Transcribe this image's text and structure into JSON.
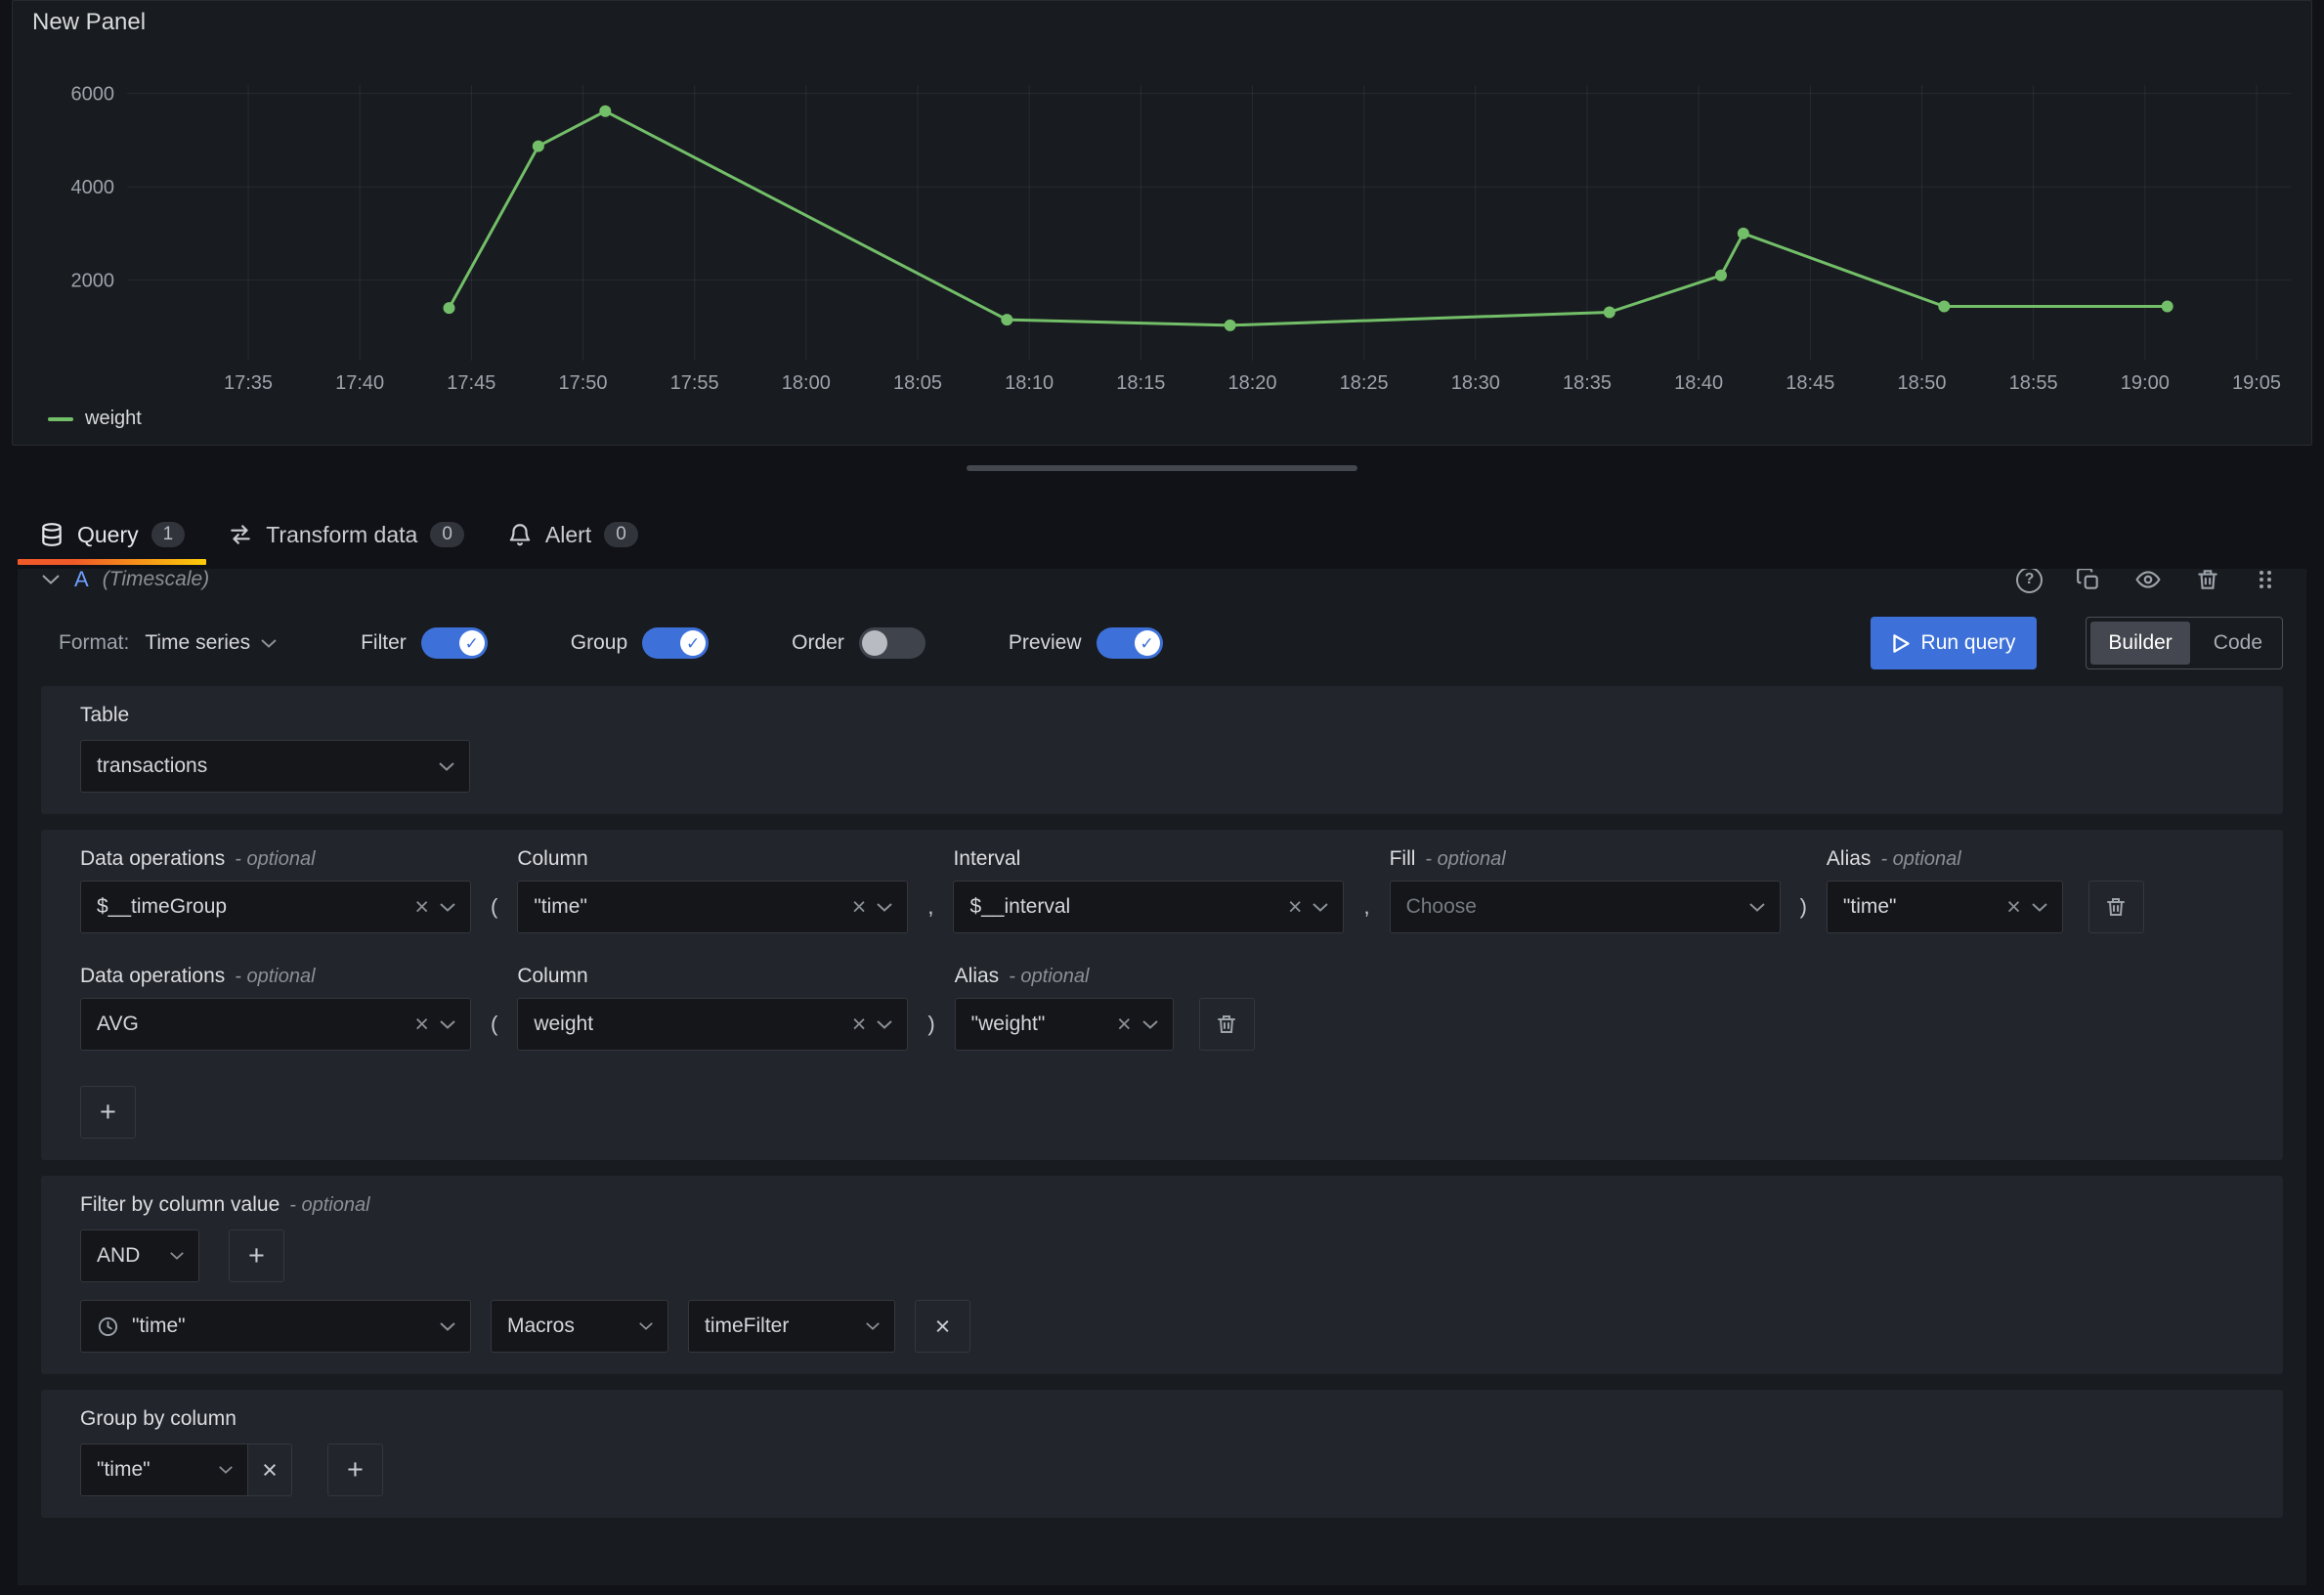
{
  "punct": {
    "open": "(",
    "close": ")",
    "comma": ","
  },
  "icons": {
    "clear": "×",
    "plus": "+",
    "help": "?",
    "check": "✓"
  },
  "panel": {
    "title": "New Panel"
  },
  "chart_data": {
    "type": "line",
    "title": "New Panel",
    "x_ticks": [
      "17:35",
      "17:40",
      "17:45",
      "17:50",
      "17:55",
      "18:00",
      "18:05",
      "18:10",
      "18:15",
      "18:20",
      "18:25",
      "18:30",
      "18:35",
      "18:40",
      "18:45",
      "18:50",
      "18:55",
      "19:00",
      "19:05"
    ],
    "y_ticks": [
      2000,
      4000,
      6000
    ],
    "ylim": [
      0,
      6600
    ],
    "grid": true,
    "legend_position": "bottom-left",
    "series": [
      {
        "name": "weight",
        "color": "#73bf69",
        "points": [
          {
            "time": "17:44",
            "value": 1400
          },
          {
            "time": "17:48",
            "value": 4870
          },
          {
            "time": "17:51",
            "value": 5620
          },
          {
            "time": "18:09",
            "value": 1150
          },
          {
            "time": "18:19",
            "value": 1030
          },
          {
            "time": "18:36",
            "value": 1310
          },
          {
            "time": "18:41",
            "value": 2100
          },
          {
            "time": "18:42",
            "value": 3000
          },
          {
            "time": "18:51",
            "value": 1435
          },
          {
            "time": "19:01",
            "value": 1435
          }
        ]
      }
    ],
    "legend": [
      {
        "label": "weight",
        "color": "#73bf69"
      }
    ]
  },
  "tabs": [
    {
      "label": "Query",
      "count": "1"
    },
    {
      "label": "Transform data",
      "count": "0"
    },
    {
      "label": "Alert",
      "count": "0"
    }
  ],
  "query_row": {
    "ref_id": "A",
    "datasource": "(Timescale)"
  },
  "toolbar": {
    "format_label": "Format:",
    "format_value": "Time series",
    "filter_label": "Filter",
    "group_label": "Group",
    "order_label": "Order",
    "preview_label": "Preview",
    "run_query_label": "Run query",
    "builder_label": "Builder",
    "code_label": "Code"
  },
  "table_section": {
    "label": "Table",
    "value": "transactions"
  },
  "data_ops": {
    "rows": [
      {
        "label": "Data operations",
        "optional": "- optional",
        "operation": "$__timeGroup",
        "column_label": "Column",
        "column": "\"time\"",
        "interval_label": "Interval",
        "interval": "$__interval",
        "fill_label": "Fill",
        "fill_optional": "- optional",
        "fill_placeholder": "Choose",
        "alias_label": "Alias",
        "alias_optional": "- optional",
        "alias": "\"time\""
      },
      {
        "label": "Data operations",
        "optional": "- optional",
        "operation": "AVG",
        "column_label": "Column",
        "column": "weight",
        "alias_label": "Alias",
        "alias_optional": "- optional",
        "alias": "\"weight\""
      }
    ]
  },
  "filter_section": {
    "label": "Filter by column value",
    "optional": "- optional",
    "operator": "AND",
    "column": "\"time\"",
    "macro_category": "Macros",
    "macro": "timeFilter"
  },
  "group_section": {
    "label": "Group by column",
    "value": "\"time\""
  }
}
